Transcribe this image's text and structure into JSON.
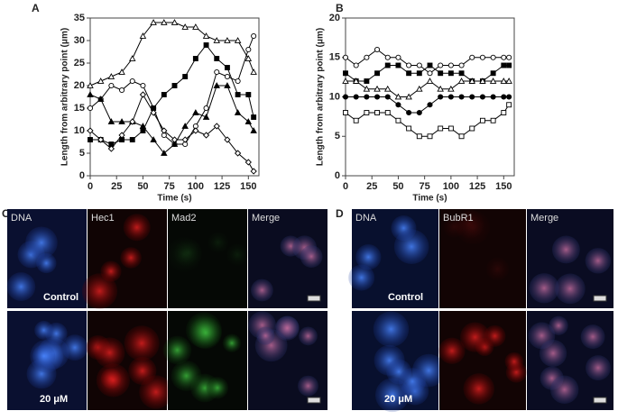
{
  "chart_data": [
    {
      "type": "line",
      "panel": "A",
      "xlabel": "Time (s)",
      "ylabel": "Length from arbitrary point (μm)",
      "x": [
        0,
        10,
        20,
        30,
        40,
        50,
        60,
        70,
        80,
        90,
        100,
        110,
        120,
        130,
        140,
        150,
        155
      ],
      "xlim": [
        0,
        160
      ],
      "xticks": [
        0,
        25,
        50,
        75,
        100,
        125,
        150
      ],
      "ylim": [
        0,
        35
      ],
      "yticks": [
        0,
        5,
        10,
        15,
        20,
        25,
        30,
        35
      ],
      "series": [
        {
          "color": "#000",
          "marker": "triangle-open",
          "values": [
            20,
            21,
            22,
            23,
            26,
            31,
            34,
            34,
            34,
            33,
            33,
            31,
            30,
            30,
            30,
            26,
            23
          ]
        },
        {
          "color": "#000",
          "marker": "circle-open",
          "values": [
            15,
            17,
            20,
            19,
            21,
            20,
            15,
            9,
            7,
            7,
            11,
            15,
            23,
            22,
            21,
            28,
            31
          ]
        },
        {
          "color": "#000",
          "marker": "square-filled",
          "values": [
            8,
            8,
            7,
            8,
            8,
            10,
            15,
            18,
            20,
            22,
            26,
            29,
            26,
            24,
            18,
            18,
            13
          ]
        },
        {
          "color": "#000",
          "marker": "triangle-filled",
          "values": [
            18,
            17,
            12,
            12,
            12,
            11,
            8,
            5,
            7,
            11,
            14,
            13,
            20,
            20,
            14,
            12,
            10
          ]
        },
        {
          "color": "#000",
          "marker": "diamond-open",
          "values": [
            10,
            8,
            6,
            9,
            12,
            18,
            14,
            10,
            8,
            8,
            10,
            9,
            11,
            8,
            5,
            3,
            1
          ]
        }
      ]
    },
    {
      "type": "line",
      "panel": "B",
      "xlabel": "Time (s)",
      "ylabel": "Length from arbitrary point (μm)",
      "x": [
        0,
        10,
        20,
        30,
        40,
        50,
        60,
        70,
        80,
        90,
        100,
        110,
        120,
        130,
        140,
        150,
        155
      ],
      "xlim": [
        0,
        160
      ],
      "xticks": [
        0,
        25,
        50,
        75,
        100,
        125,
        150
      ],
      "ylim": [
        0,
        20
      ],
      "yticks": [
        0,
        5,
        10,
        15,
        20
      ],
      "series": [
        {
          "color": "#000",
          "marker": "circle-open",
          "values": [
            15,
            14,
            15,
            16,
            15,
            15,
            14,
            14,
            13,
            14,
            14,
            14,
            15,
            15,
            15,
            15,
            15
          ]
        },
        {
          "color": "#000",
          "marker": "square-filled",
          "values": [
            13,
            12,
            12,
            13,
            14,
            14,
            13,
            13,
            14,
            13,
            13,
            13,
            12,
            12,
            13,
            14,
            14
          ]
        },
        {
          "color": "#000",
          "marker": "triangle-open",
          "values": [
            12,
            12,
            11,
            11,
            11,
            10,
            10,
            11,
            12,
            11,
            11,
            12,
            12,
            12,
            12,
            12,
            12
          ]
        },
        {
          "color": "#000",
          "marker": "circle-filled",
          "values": [
            10,
            10,
            10,
            10,
            10,
            9,
            8,
            8,
            9,
            10,
            10,
            10,
            10,
            10,
            10,
            10,
            10
          ]
        },
        {
          "color": "#000",
          "marker": "square-open",
          "values": [
            8,
            7,
            8,
            8,
            8,
            7,
            6,
            5,
            5,
            6,
            6,
            5,
            6,
            7,
            7,
            8,
            9
          ]
        }
      ]
    }
  ],
  "panels": [
    {
      "label": "C",
      "columns": [
        "DNA",
        "Hec1",
        "Mad2",
        "Merge"
      ],
      "rows": [
        "Control",
        "20 μM"
      ]
    },
    {
      "label": "D",
      "columns": [
        "DNA",
        "BubR1",
        "Merge"
      ],
      "rows": [
        "Control",
        "20 μM"
      ]
    }
  ]
}
